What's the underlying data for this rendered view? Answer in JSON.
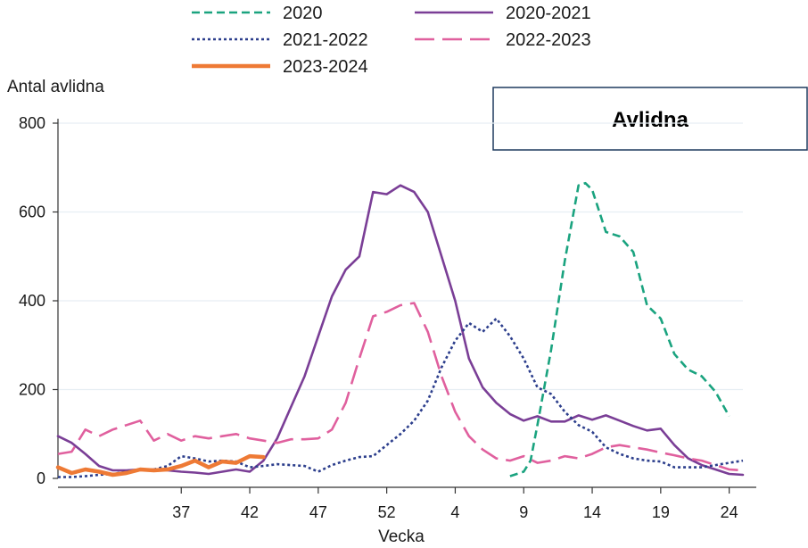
{
  "chart_data": {
    "type": "line",
    "title": "Avlidna",
    "ylabel": "Antal avlidna",
    "xlabel": "Vecka",
    "ylim": [
      0,
      800
    ],
    "yticks": [
      0,
      200,
      400,
      600,
      800
    ],
    "x_tick_labels": [
      "37",
      "42",
      "47",
      "52",
      "4",
      "9",
      "14",
      "19",
      "24"
    ],
    "x_tick_positions": [
      37,
      42,
      47,
      52,
      57,
      62,
      67,
      72,
      77
    ],
    "grid": true,
    "legend_position": "top",
    "series": [
      {
        "name": "2020",
        "color": "#1aa37f",
        "dash": "dashed",
        "points": [
          [
            61,
            5
          ],
          [
            62,
            15
          ],
          [
            62.5,
            40
          ],
          [
            63,
            120
          ],
          [
            64,
            290
          ],
          [
            65,
            490
          ],
          [
            66,
            660
          ],
          [
            66.5,
            665
          ],
          [
            67,
            650
          ],
          [
            68,
            555
          ],
          [
            69,
            545
          ],
          [
            70,
            510
          ],
          [
            71,
            390
          ],
          [
            72,
            360
          ],
          [
            73,
            280
          ],
          [
            74,
            245
          ],
          [
            75,
            230
          ],
          [
            76,
            195
          ],
          [
            77,
            140
          ]
        ]
      },
      {
        "name": "2020-2021",
        "color": "#7a3e96",
        "dash": "solid",
        "points": [
          [
            28,
            95
          ],
          [
            29,
            80
          ],
          [
            30,
            55
          ],
          [
            31,
            28
          ],
          [
            32,
            18
          ],
          [
            33,
            18
          ],
          [
            34,
            20
          ],
          [
            35,
            20
          ],
          [
            36,
            18
          ],
          [
            37,
            15
          ],
          [
            38,
            13
          ],
          [
            39,
            10
          ],
          [
            40,
            15
          ],
          [
            41,
            20
          ],
          [
            42,
            15
          ],
          [
            43,
            40
          ],
          [
            44,
            90
          ],
          [
            45,
            160
          ],
          [
            46,
            230
          ],
          [
            47,
            320
          ],
          [
            48,
            410
          ],
          [
            49,
            470
          ],
          [
            50,
            500
          ],
          [
            51,
            645
          ],
          [
            52,
            640
          ],
          [
            53,
            660
          ],
          [
            54,
            645
          ],
          [
            55,
            600
          ],
          [
            56,
            500
          ],
          [
            57,
            400
          ],
          [
            58,
            270
          ],
          [
            59,
            205
          ],
          [
            60,
            170
          ],
          [
            61,
            145
          ],
          [
            62,
            130
          ],
          [
            63,
            140
          ],
          [
            64,
            128
          ],
          [
            65,
            128
          ],
          [
            66,
            142
          ],
          [
            67,
            132
          ],
          [
            68,
            142
          ],
          [
            69,
            130
          ],
          [
            70,
            118
          ],
          [
            71,
            108
          ],
          [
            72,
            112
          ],
          [
            73,
            75
          ],
          [
            74,
            45
          ],
          [
            75,
            30
          ],
          [
            76,
            20
          ],
          [
            77,
            10
          ],
          [
            78,
            8
          ]
        ]
      },
      {
        "name": "2021-2022",
        "color": "#2c3e8c",
        "dash": "dotted",
        "points": [
          [
            28,
            3
          ],
          [
            29,
            3
          ],
          [
            30,
            5
          ],
          [
            31,
            8
          ],
          [
            32,
            10
          ],
          [
            33,
            15
          ],
          [
            34,
            20
          ],
          [
            35,
            20
          ],
          [
            36,
            28
          ],
          [
            37,
            50
          ],
          [
            38,
            45
          ],
          [
            39,
            38
          ],
          [
            40,
            40
          ],
          [
            41,
            38
          ],
          [
            42,
            25
          ],
          [
            43,
            28
          ],
          [
            44,
            32
          ],
          [
            45,
            30
          ],
          [
            46,
            28
          ],
          [
            47,
            15
          ],
          [
            48,
            30
          ],
          [
            49,
            40
          ],
          [
            50,
            48
          ],
          [
            51,
            50
          ],
          [
            52,
            75
          ],
          [
            53,
            100
          ],
          [
            54,
            130
          ],
          [
            55,
            175
          ],
          [
            56,
            250
          ],
          [
            57,
            310
          ],
          [
            58,
            350
          ],
          [
            59,
            330
          ],
          [
            60,
            360
          ],
          [
            61,
            320
          ],
          [
            62,
            270
          ],
          [
            63,
            205
          ],
          [
            64,
            190
          ],
          [
            65,
            150
          ],
          [
            66,
            120
          ],
          [
            67,
            105
          ],
          [
            68,
            70
          ],
          [
            69,
            55
          ],
          [
            70,
            45
          ],
          [
            71,
            40
          ],
          [
            72,
            38
          ],
          [
            73,
            25
          ],
          [
            74,
            25
          ],
          [
            75,
            25
          ],
          [
            76,
            30
          ],
          [
            77,
            35
          ],
          [
            78,
            40
          ]
        ]
      },
      {
        "name": "2022-2023",
        "color": "#e0609e",
        "dash": "longdash",
        "points": [
          [
            28,
            55
          ],
          [
            29,
            60
          ],
          [
            30,
            110
          ],
          [
            31,
            95
          ],
          [
            32,
            110
          ],
          [
            33,
            120
          ],
          [
            34,
            130
          ],
          [
            35,
            85
          ],
          [
            36,
            100
          ],
          [
            37,
            85
          ],
          [
            38,
            95
          ],
          [
            39,
            90
          ],
          [
            40,
            95
          ],
          [
            41,
            100
          ],
          [
            42,
            90
          ],
          [
            43,
            85
          ],
          [
            44,
            80
          ],
          [
            45,
            88
          ],
          [
            46,
            88
          ],
          [
            47,
            90
          ],
          [
            48,
            110
          ],
          [
            49,
            170
          ],
          [
            50,
            270
          ],
          [
            51,
            365
          ],
          [
            52,
            375
          ],
          [
            53,
            390
          ],
          [
            54,
            395
          ],
          [
            55,
            330
          ],
          [
            56,
            230
          ],
          [
            57,
            150
          ],
          [
            58,
            95
          ],
          [
            59,
            65
          ],
          [
            60,
            45
          ],
          [
            61,
            40
          ],
          [
            62,
            50
          ],
          [
            63,
            35
          ],
          [
            64,
            40
          ],
          [
            65,
            50
          ],
          [
            66,
            45
          ],
          [
            67,
            55
          ],
          [
            68,
            70
          ],
          [
            69,
            75
          ],
          [
            70,
            70
          ],
          [
            71,
            65
          ],
          [
            72,
            58
          ],
          [
            73,
            52
          ],
          [
            74,
            45
          ],
          [
            75,
            40
          ],
          [
            76,
            30
          ],
          [
            77,
            20
          ],
          [
            78,
            18
          ]
        ]
      },
      {
        "name": "2023-2024",
        "color": "#ee7a35",
        "dash": "solid-thick",
        "points": [
          [
            28,
            25
          ],
          [
            29,
            12
          ],
          [
            30,
            20
          ],
          [
            31,
            15
          ],
          [
            32,
            8
          ],
          [
            33,
            12
          ],
          [
            34,
            20
          ],
          [
            35,
            18
          ],
          [
            36,
            20
          ],
          [
            37,
            28
          ],
          [
            38,
            40
          ],
          [
            39,
            25
          ],
          [
            40,
            38
          ],
          [
            41,
            35
          ],
          [
            42,
            50
          ],
          [
            43,
            48
          ]
        ]
      }
    ],
    "legend": [
      "2020",
      "2020-2021",
      "2021-2022",
      "2022-2023",
      "2023-2024"
    ]
  }
}
